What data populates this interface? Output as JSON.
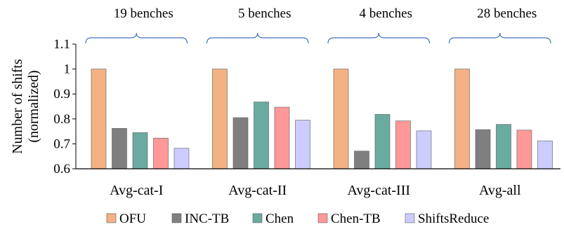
{
  "chart_data": {
    "type": "bar",
    "title": "",
    "xlabel": "",
    "ylabel": "Number of shifts (normalized)",
    "ylabel_lines": [
      "Number of shifts",
      "(normalized)"
    ],
    "ylim": [
      0.6,
      1.1
    ],
    "yticks": [
      "0.6",
      "0.7",
      "0.8",
      "0.9",
      "1",
      "1.1"
    ],
    "grid": false,
    "legend_position": "bottom",
    "categories": [
      "Avg-cat-I",
      "Avg-cat-II",
      "Avg-cat-III",
      "Avg-all"
    ],
    "group_annotations": [
      "19 benches",
      "5 benches",
      "4 benches",
      "28 benches"
    ],
    "series": [
      {
        "name": "OFU",
        "color": "#F4B183",
        "values": [
          1.0,
          1.0,
          1.0,
          1.0
        ]
      },
      {
        "name": "INC-TB",
        "color": "#7F7F7F",
        "values": [
          0.762,
          0.805,
          0.671,
          0.757
        ]
      },
      {
        "name": "Chen",
        "color": "#6AABA0",
        "values": [
          0.745,
          0.868,
          0.818,
          0.778
        ]
      },
      {
        "name": "Chen-TB",
        "color": "#FF9999",
        "values": [
          0.723,
          0.847,
          0.792,
          0.755
        ]
      },
      {
        "name": "ShiftsReduce",
        "color": "#CCCCFF",
        "values": [
          0.682,
          0.795,
          0.752,
          0.712
        ]
      }
    ],
    "brace_color": "#4472C4"
  }
}
